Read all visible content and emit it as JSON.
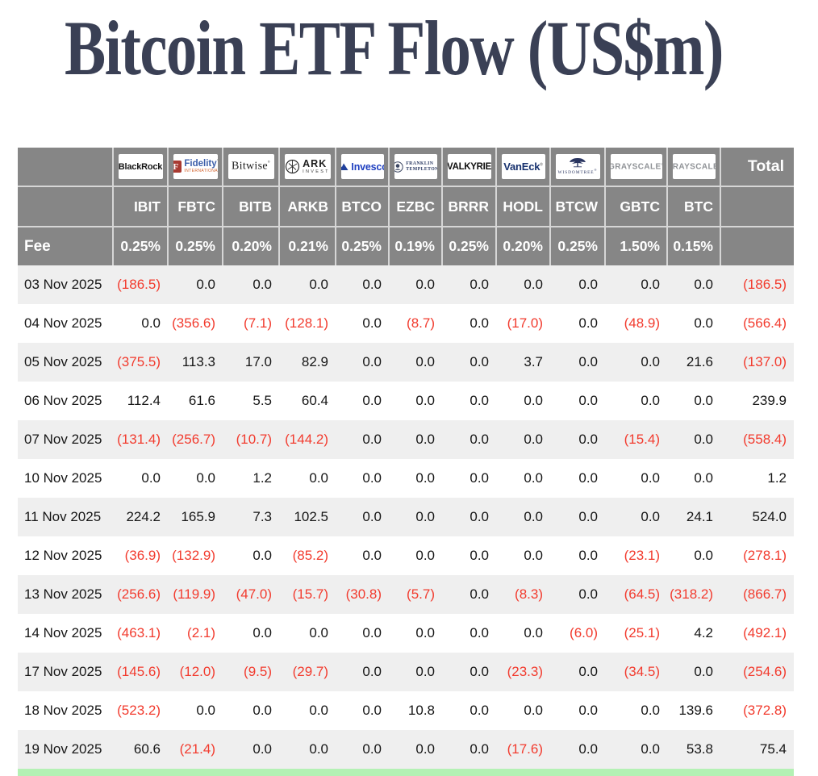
{
  "page": {
    "title": "Bitcoin ETF Flow (US$m)"
  },
  "table": {
    "fee_label": "Fee",
    "total_label": "Total",
    "issuers": [
      {
        "logo": "blackrock",
        "name": "BlackRock",
        "ticker": "IBIT",
        "fee": "0.25%"
      },
      {
        "logo": "fidelity",
        "name": "Fidelity",
        "ticker": "FBTC",
        "fee": "0.25%"
      },
      {
        "logo": "bitwise",
        "name": "Bitwise",
        "ticker": "BITB",
        "fee": "0.20%"
      },
      {
        "logo": "ark-invest",
        "name": "ARK Invest",
        "ticker": "ARKB",
        "fee": "0.21%"
      },
      {
        "logo": "invesco",
        "name": "Invesco",
        "ticker": "BTCO",
        "fee": "0.25%"
      },
      {
        "logo": "franklin-templeton",
        "name": "Franklin Templeton",
        "ticker": "EZBC",
        "fee": "0.19%"
      },
      {
        "logo": "valkyrie",
        "name": "Valkyrie",
        "ticker": "BRRR",
        "fee": "0.25%"
      },
      {
        "logo": "vaneck",
        "name": "VanEck",
        "ticker": "HODL",
        "fee": "0.20%"
      },
      {
        "logo": "wisdomtree",
        "name": "WisdomTree",
        "ticker": "BTCW",
        "fee": "0.25%"
      },
      {
        "logo": "grayscale",
        "name": "Grayscale",
        "ticker": "GBTC",
        "fee": "1.50%"
      },
      {
        "logo": "grayscale",
        "name": "Grayscale",
        "ticker": "BTC",
        "fee": "0.15%"
      }
    ]
  },
  "colors": {
    "title": "#3a4055",
    "header_bg": "#868686",
    "header_text": "#ffffff",
    "row_alt_bg": "#efefef",
    "negative": "#f23b2e",
    "positive_text": "#161616",
    "bottom_highlight": "#b4f1b4"
  },
  "chart_data": {
    "type": "table",
    "title": "Bitcoin ETF Flow (US$m)",
    "columns": [
      "Date",
      "IBIT",
      "FBTC",
      "BITB",
      "ARKB",
      "BTCO",
      "EZBC",
      "BRRR",
      "HODL",
      "BTCW",
      "GBTC",
      "BTC",
      "Total"
    ],
    "fees": [
      "0.25%",
      "0.25%",
      "0.20%",
      "0.21%",
      "0.25%",
      "0.19%",
      "0.25%",
      "0.20%",
      "0.25%",
      "1.50%",
      "0.15%"
    ],
    "negative_format": "parentheses_red",
    "rows": [
      {
        "date": "03 Nov 2025",
        "values": [
          -186.5,
          0,
          0,
          0,
          0,
          0,
          0,
          0,
          0,
          0,
          0
        ],
        "total": -186.5
      },
      {
        "date": "04 Nov 2025",
        "values": [
          0,
          -356.6,
          -7.1,
          -128.1,
          0,
          -8.7,
          0,
          -17.0,
          0,
          -48.9,
          0
        ],
        "total": -566.4
      },
      {
        "date": "05 Nov 2025",
        "values": [
          -375.5,
          113.3,
          17.0,
          82.9,
          0,
          0,
          0,
          3.7,
          0,
          0,
          21.6
        ],
        "total": -137.0
      },
      {
        "date": "06 Nov 2025",
        "values": [
          112.4,
          61.6,
          5.5,
          60.4,
          0,
          0,
          0,
          0,
          0,
          0,
          0
        ],
        "total": 239.9
      },
      {
        "date": "07 Nov 2025",
        "values": [
          -131.4,
          -256.7,
          -10.7,
          -144.2,
          0,
          0,
          0,
          0,
          0,
          -15.4,
          0
        ],
        "total": -558.4
      },
      {
        "date": "10 Nov 2025",
        "values": [
          0,
          0,
          1.2,
          0,
          0,
          0,
          0,
          0,
          0,
          0,
          0
        ],
        "total": 1.2
      },
      {
        "date": "11 Nov 2025",
        "values": [
          224.2,
          165.9,
          7.3,
          102.5,
          0,
          0,
          0,
          0,
          0,
          0,
          24.1
        ],
        "total": 524.0
      },
      {
        "date": "12 Nov 2025",
        "values": [
          -36.9,
          -132.9,
          0,
          -85.2,
          0,
          0,
          0,
          0,
          0,
          -23.1,
          0
        ],
        "total": -278.1
      },
      {
        "date": "13 Nov 2025",
        "values": [
          -256.6,
          -119.9,
          -47.0,
          -15.7,
          -30.8,
          -5.7,
          0,
          -8.3,
          0,
          -64.5,
          -318.2
        ],
        "total": -866.7
      },
      {
        "date": "14 Nov 2025",
        "values": [
          -463.1,
          -2.1,
          0,
          0,
          0,
          0,
          0,
          0,
          -6.0,
          -25.1,
          4.2
        ],
        "total": -492.1
      },
      {
        "date": "17 Nov 2025",
        "values": [
          -145.6,
          -12.0,
          -9.5,
          -29.7,
          0,
          0,
          0,
          -23.3,
          0,
          -34.5,
          0
        ],
        "total": -254.6
      },
      {
        "date": "18 Nov 2025",
        "values": [
          -523.2,
          0,
          0,
          0,
          0,
          10.8,
          0,
          0,
          0,
          0,
          139.6
        ],
        "total": -372.8
      },
      {
        "date": "19 Nov 2025",
        "values": [
          60.6,
          -21.4,
          0,
          0,
          0,
          0,
          0,
          -17.6,
          0,
          0,
          53.8
        ],
        "total": 75.4
      }
    ]
  }
}
